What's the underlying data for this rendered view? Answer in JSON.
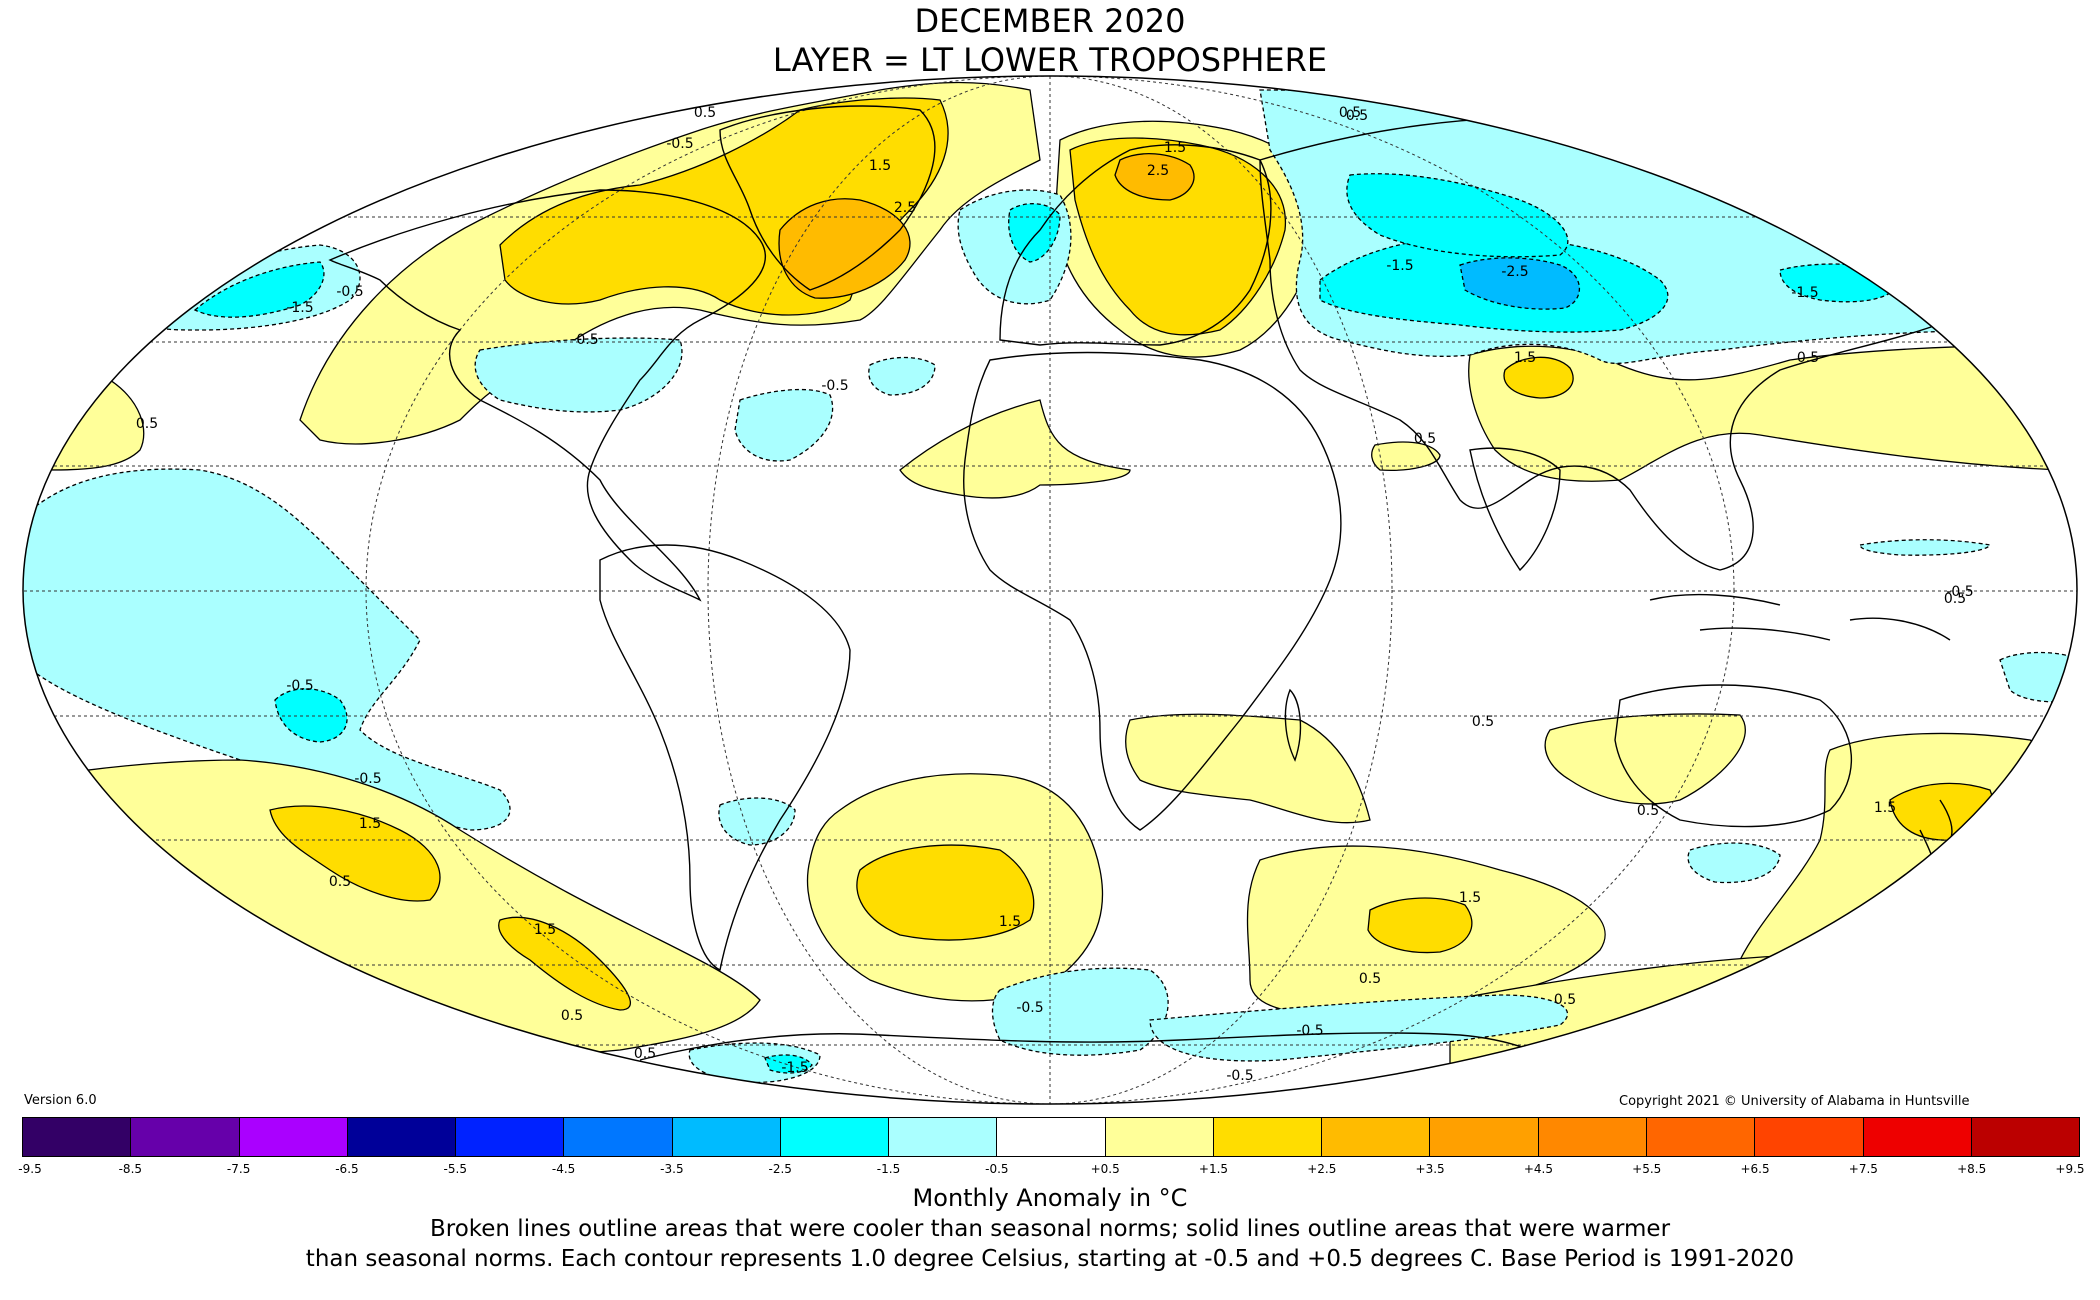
{
  "title": {
    "line1": "DECEMBER 2020",
    "line2": "LAYER = LT LOWER TROPOSPHERE"
  },
  "version": "Version 6.0",
  "copyright": "Copyright 2021 © University of Alabama in Huntsville",
  "colorbar": {
    "units_label": "Monthly Anomaly in °C",
    "ticks": [
      "-9.5",
      "-8.5",
      "-7.5",
      "-6.5",
      "-5.5",
      "-4.5",
      "-3.5",
      "-2.5",
      "-1.5",
      "-0.5",
      "+0.5",
      "+1.5",
      "+2.5",
      "+3.5",
      "+4.5",
      "+5.5",
      "+6.5",
      "+7.5",
      "+8.5",
      "+9.5"
    ],
    "colors": [
      "#330066",
      "#6600aa",
      "#aa00ff",
      "#000099",
      "#0022ff",
      "#0077ff",
      "#00bbff",
      "#00ffff",
      "#aaffff",
      "#ffffff",
      "#ffff99",
      "#ffdd00",
      "#ffbb00",
      "#ffa000",
      "#ff8800",
      "#ff6600",
      "#ff4400",
      "#ee0000",
      "#bb0000"
    ]
  },
  "caption": {
    "line1": "Broken lines outline areas that were cooler than seasonal norms; solid lines outline areas that were warmer",
    "line2": "than seasonal norms. Each contour represents 1.0 degree Celsius, starting at -0.5 and +0.5 degrees C. Base Period is 1991-2020"
  },
  "contour_labels": [
    {
      "text": "0.5"
    },
    {
      "text": "-0.5"
    },
    {
      "text": "1.5"
    },
    {
      "text": "2.5"
    },
    {
      "text": "-1.5"
    },
    {
      "text": "-0.5"
    },
    {
      "text": "2.5"
    },
    {
      "text": "1.5"
    },
    {
      "text": "-1.5"
    },
    {
      "text": "-2.5"
    },
    {
      "text": "0.5"
    },
    {
      "text": "1.5"
    },
    {
      "text": "-0.5"
    },
    {
      "text": "0.5"
    },
    {
      "text": "-1.5"
    },
    {
      "text": "-0.5"
    },
    {
      "text": "1.5"
    },
    {
      "text": "0.5"
    },
    {
      "text": "1.5"
    },
    {
      "text": "1.5"
    },
    {
      "text": "0.5"
    },
    {
      "text": "0.5"
    },
    {
      "text": "-0.5"
    },
    {
      "text": "0.5"
    },
    {
      "text": "-0.5"
    },
    {
      "text": "-0.5"
    },
    {
      "text": "0.5"
    },
    {
      "text": "1.5"
    },
    {
      "text": "-1.5"
    },
    {
      "text": "0.5"
    },
    {
      "text": "0.5"
    },
    {
      "text": "-0.5"
    },
    {
      "text": "-0.5"
    },
    {
      "text": "0.5"
    },
    {
      "text": "0.5"
    },
    {
      "text": "-0.5"
    },
    {
      "text": "0.5"
    },
    {
      "text": "1.5"
    },
    {
      "text": "0.5"
    }
  ]
}
